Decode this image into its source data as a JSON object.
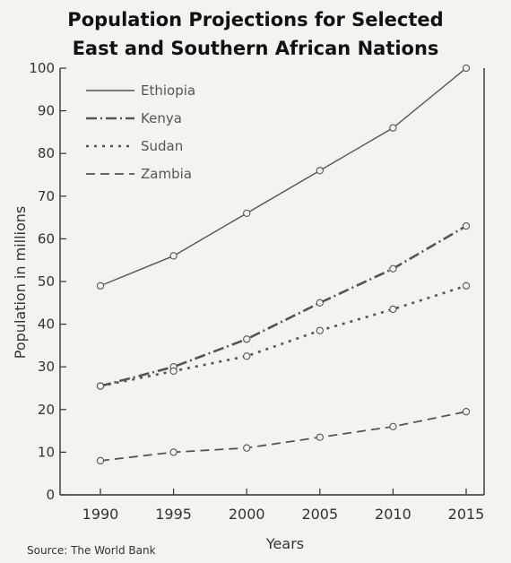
{
  "chart_data": {
    "type": "line",
    "title": [
      "Population Projections for Selected",
      "East and Southern African Nations"
    ],
    "xlabel": "Years",
    "ylabel": "Population in millions",
    "x": [
      1990,
      1995,
      2000,
      2005,
      2010,
      2015
    ],
    "xlim": [
      1990,
      2015
    ],
    "ylim": [
      0,
      100
    ],
    "yticks": [
      0,
      10,
      20,
      30,
      40,
      50,
      60,
      70,
      80,
      90,
      100
    ],
    "legend_position": "top-left",
    "grid": false,
    "series": [
      {
        "name": "Ethiopia",
        "style": "solid",
        "values": [
          49,
          56,
          66,
          76,
          86,
          100
        ]
      },
      {
        "name": "Kenya",
        "style": "dashdot",
        "values": [
          25.5,
          30,
          36.5,
          45,
          53,
          63
        ]
      },
      {
        "name": "Sudan",
        "style": "dotted",
        "values": [
          25.5,
          29,
          32.5,
          38.5,
          43.5,
          49
        ]
      },
      {
        "name": "Zambia",
        "style": "dashed",
        "values": [
          8,
          10,
          11,
          13.5,
          16,
          19.5
        ]
      }
    ],
    "source": "Source: The World Bank",
    "colors": {
      "line": "#555555",
      "axis": "#333333",
      "text": "#333333"
    }
  }
}
